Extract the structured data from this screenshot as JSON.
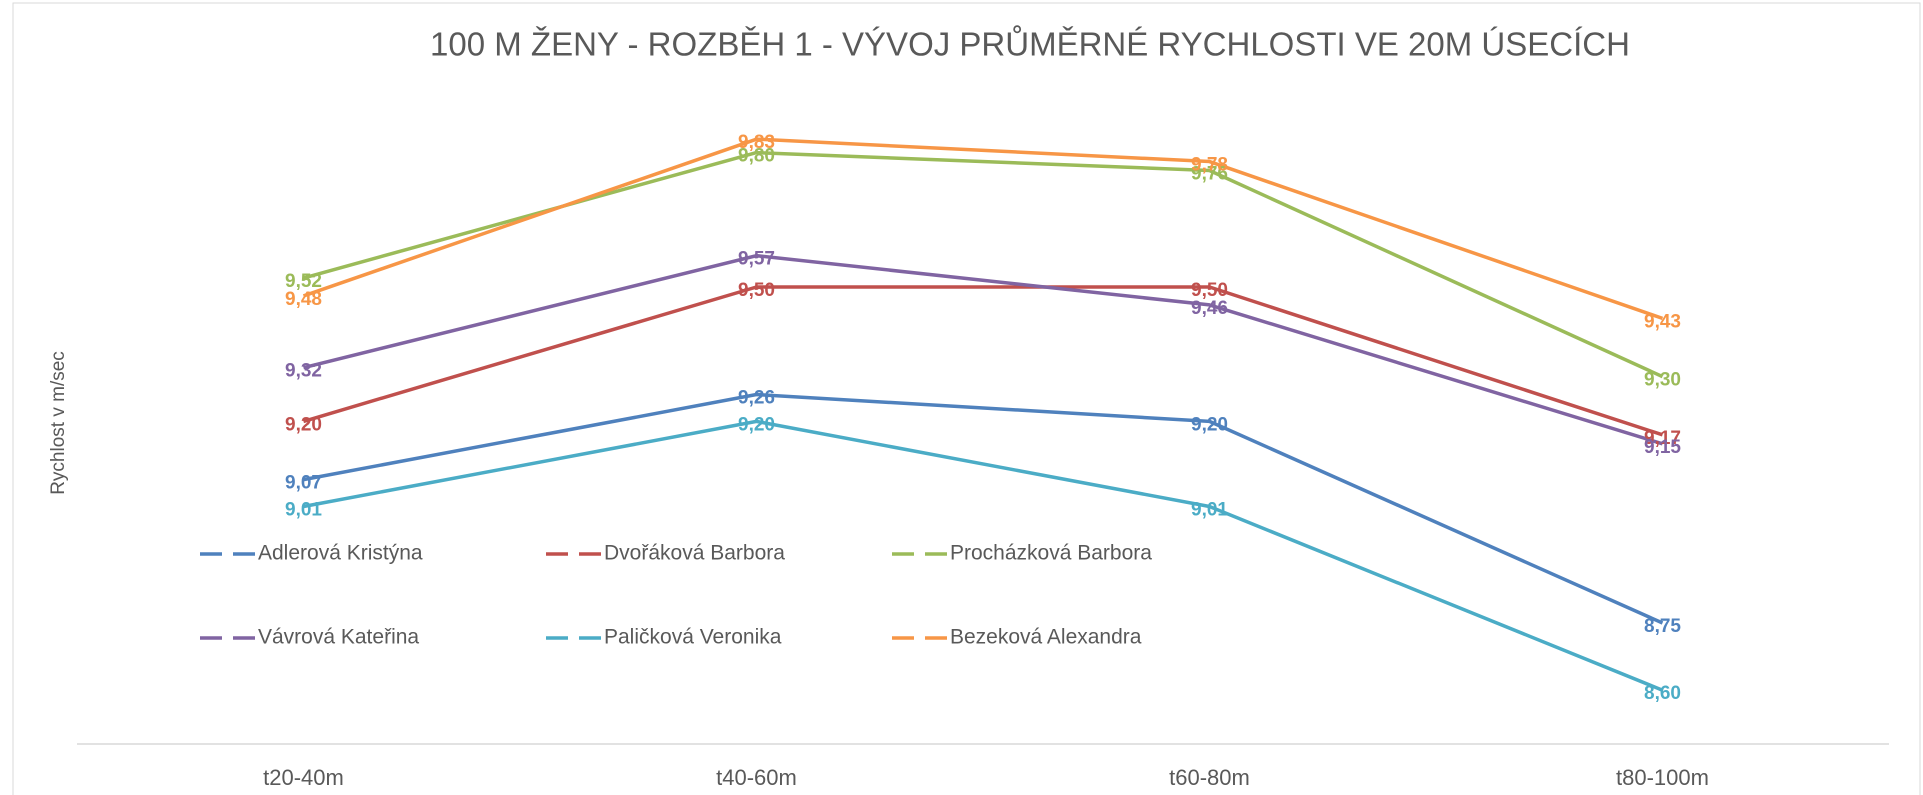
{
  "chart_data": {
    "type": "line",
    "title": "100 M ŽENY - ROZBĚH 1 - VÝVOJ PRŮMĚRNÉ RYCHLOSTI VE 20M ÚSECÍCH",
    "y_label": "Rychlost v m/sec",
    "categories": [
      "t20-40m",
      "t40-60m",
      "t60-80m",
      "t80-100m"
    ],
    "ylim": [
      8.5,
      10.0
    ],
    "series": [
      {
        "name": "Adlerová Kristýna",
        "color": "#4f81bd",
        "values": [
          9.07,
          9.26,
          9.2,
          8.75
        ],
        "value_labels": [
          "9,07",
          "9,26",
          "9,20",
          "8,75"
        ]
      },
      {
        "name": "Dvořáková Barbora",
        "color": "#c0504d",
        "values": [
          9.2,
          9.5,
          9.5,
          9.17
        ],
        "value_labels": [
          "9,20",
          "9,50",
          "9,50",
          "9,17"
        ]
      },
      {
        "name": "Procházková Barbora",
        "color": "#9bbb59",
        "values": [
          9.52,
          9.8,
          9.76,
          9.3
        ],
        "value_labels": [
          "9,52",
          "9,80",
          "9,76",
          "9,30"
        ]
      },
      {
        "name": "Vávrová Kateřina",
        "color": "#8064a2",
        "values": [
          9.32,
          9.57,
          9.46,
          9.15
        ],
        "value_labels": [
          "9,32",
          "9,57",
          "9,46",
          "9,15"
        ]
      },
      {
        "name": "Paličková Veronika",
        "color": "#4bacc6",
        "values": [
          9.01,
          9.2,
          9.01,
          8.6
        ],
        "value_labels": [
          "9,01",
          "9,20",
          "9,01",
          "8,60"
        ]
      },
      {
        "name": "Bezeková Alexandra",
        "color": "#f79646",
        "values": [
          9.48,
          9.83,
          9.78,
          9.43
        ],
        "value_labels": [
          "9,48",
          "9,83",
          "9,78",
          "9,43"
        ]
      }
    ]
  }
}
